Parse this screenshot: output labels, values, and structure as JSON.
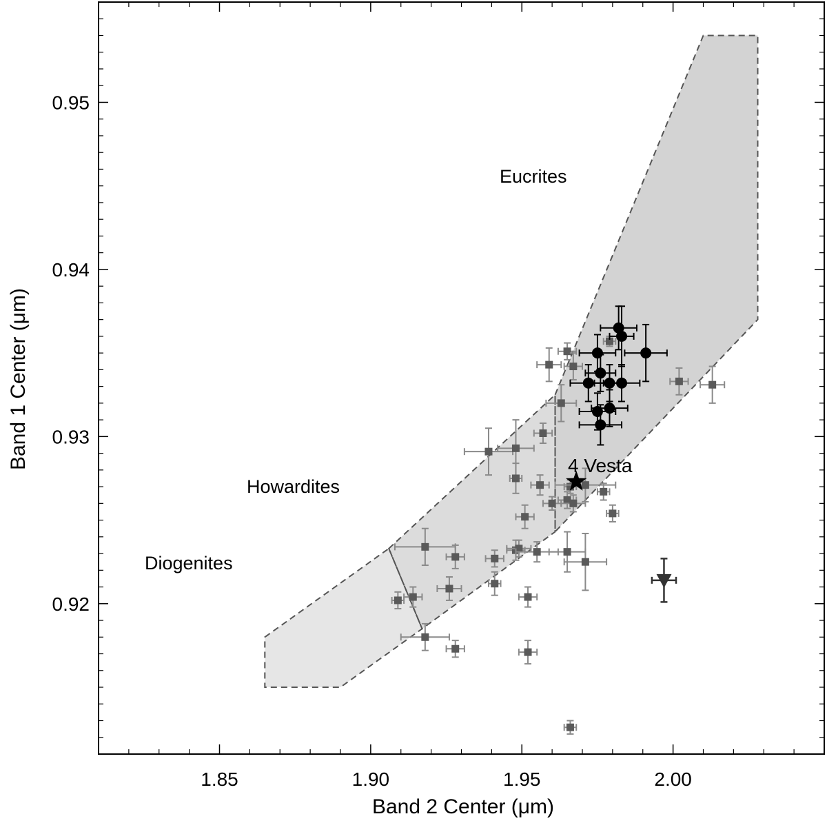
{
  "chart_data": {
    "type": "scatter",
    "xlabel": "Band 2 Center (μm)",
    "ylabel": "Band 1 Center (μm)",
    "xlim": [
      1.81,
      2.05
    ],
    "ylim": [
      0.911,
      0.956
    ],
    "xticks": [
      1.85,
      1.9,
      1.95,
      2.0
    ],
    "xtick_labels": [
      "1.85",
      "1.90",
      "1.95",
      "2.00"
    ],
    "yticks": [
      0.92,
      0.93,
      0.94,
      0.95
    ],
    "ytick_labels": [
      "0.92",
      "0.93",
      "0.94",
      "0.95"
    ],
    "grid": false,
    "colors": {
      "eucrite_region": "#d3d3d3",
      "howardite_region": "#dcdcdc",
      "diogenite_region": "#e6e6e6",
      "region_border": "#555555",
      "gray_points": "#5a5a5a",
      "gray_errorbars": "#8a8a8a",
      "black_points": "#000000",
      "triangle_point": "#333333"
    },
    "regions": [
      {
        "name": "Eucrites",
        "polygon": [
          [
            1.961,
            0.9325
          ],
          [
            2.01,
            0.954
          ],
          [
            2.028,
            0.954
          ],
          [
            2.028,
            0.937
          ],
          [
            1.961,
            0.9243
          ]
        ]
      },
      {
        "name": "Howardites",
        "polygon": [
          [
            1.906,
            0.9233
          ],
          [
            1.961,
            0.9325
          ],
          [
            1.961,
            0.9243
          ],
          [
            1.917,
            0.9185
          ]
        ]
      },
      {
        "name": "Diogenites",
        "polygon": [
          [
            1.865,
            0.918
          ],
          [
            1.906,
            0.9233
          ],
          [
            1.917,
            0.9185
          ],
          [
            1.89,
            0.915
          ],
          [
            1.865,
            0.915
          ]
        ]
      }
    ],
    "region_labels": [
      "Eucrites",
      "Howardites",
      "Diogenites"
    ],
    "series": [
      {
        "marker": "square",
        "points": [
          {
            "x": 1.909,
            "y": 0.9202,
            "xerr": 0.002,
            "yerr": 0.0005
          },
          {
            "x": 1.914,
            "y": 0.9204,
            "xerr": 0.003,
            "yerr": 0.0006
          },
          {
            "x": 1.918,
            "y": 0.9234,
            "xerr": 0.01,
            "yerr": 0.0011
          },
          {
            "x": 1.918,
            "y": 0.918,
            "xerr": 0.008,
            "yerr": 0.0008
          },
          {
            "x": 1.926,
            "y": 0.9209,
            "xerr": 0.004,
            "yerr": 0.0007
          },
          {
            "x": 1.928,
            "y": 0.9228,
            "xerr": 0.003,
            "yerr": 0.0007
          },
          {
            "x": 1.928,
            "y": 0.9173,
            "xerr": 0.003,
            "yerr": 0.0005
          },
          {
            "x": 1.939,
            "y": 0.9291,
            "xerr": 0.008,
            "yerr": 0.0014
          },
          {
            "x": 1.941,
            "y": 0.9227,
            "xerr": 0.003,
            "yerr": 0.0005
          },
          {
            "x": 1.941,
            "y": 0.9212,
            "xerr": 0.002,
            "yerr": 0.0007
          },
          {
            "x": 1.948,
            "y": 0.9293,
            "xerr": 0.006,
            "yerr": 0.0017
          },
          {
            "x": 1.948,
            "y": 0.9275,
            "xerr": 0.002,
            "yerr": 0.0009
          },
          {
            "x": 1.948,
            "y": 0.9232,
            "xerr": 0.003,
            "yerr": 0.0006
          },
          {
            "x": 1.949,
            "y": 0.9233,
            "xerr": 0.004,
            "yerr": 0.0005
          },
          {
            "x": 1.951,
            "y": 0.9252,
            "xerr": 0.003,
            "yerr": 0.0007
          },
          {
            "x": 1.952,
            "y": 0.9204,
            "xerr": 0.003,
            "yerr": 0.0006
          },
          {
            "x": 1.952,
            "y": 0.9171,
            "xerr": 0.003,
            "yerr": 0.0007
          },
          {
            "x": 1.955,
            "y": 0.9231,
            "xerr": 0.007,
            "yerr": 0.0006
          },
          {
            "x": 1.956,
            "y": 0.9271,
            "xerr": 0.003,
            "yerr": 0.0006
          },
          {
            "x": 1.957,
            "y": 0.9302,
            "xerr": 0.003,
            "yerr": 0.0006
          },
          {
            "x": 1.959,
            "y": 0.9343,
            "xerr": 0.004,
            "yerr": 0.001
          },
          {
            "x": 1.96,
            "y": 0.926,
            "xerr": 0.003,
            "yerr": 0.0004
          },
          {
            "x": 1.963,
            "y": 0.932,
            "xerr": 0.005,
            "yerr": 0.0011
          },
          {
            "x": 1.965,
            "y": 0.9351,
            "xerr": 0.003,
            "yerr": 0.0005
          },
          {
            "x": 1.965,
            "y": 0.9231,
            "xerr": 0.006,
            "yerr": 0.0012
          },
          {
            "x": 1.965,
            "y": 0.9262,
            "xerr": 0.003,
            "yerr": 0.0005
          },
          {
            "x": 1.966,
            "y": 0.927,
            "xerr": 0.002,
            "yerr": 0.0004
          },
          {
            "x": 1.966,
            "y": 0.9126,
            "xerr": 0.002,
            "yerr": 0.0004
          },
          {
            "x": 1.967,
            "y": 0.926,
            "xerr": 0.004,
            "yerr": 0.0005
          },
          {
            "x": 1.967,
            "y": 0.9342,
            "xerr": 0.003,
            "yerr": 0.0008
          },
          {
            "x": 1.971,
            "y": 0.9271,
            "xerr": 0.01,
            "yerr": 0.001
          },
          {
            "x": 1.971,
            "y": 0.9225,
            "xerr": 0.007,
            "yerr": 0.0017
          },
          {
            "x": 1.977,
            "y": 0.9267,
            "xerr": 0.002,
            "yerr": 0.0005
          },
          {
            "x": 1.979,
            "y": 0.9357,
            "xerr": 0.002,
            "yerr": 0.0003
          },
          {
            "x": 1.98,
            "y": 0.9254,
            "xerr": 0.002,
            "yerr": 0.0005
          },
          {
            "x": 2.002,
            "y": 0.9333,
            "xerr": 0.003,
            "yerr": 0.0008
          },
          {
            "x": 2.013,
            "y": 0.9331,
            "xerr": 0.004,
            "yerr": 0.0011
          }
        ]
      },
      {
        "marker": "circle",
        "points": [
          {
            "x": 1.975,
            "y": 0.935,
            "xerr": 0.006,
            "yerr": 0.0011
          },
          {
            "x": 1.976,
            "y": 0.9338,
            "xerr": 0.005,
            "yerr": 0.0011
          },
          {
            "x": 1.972,
            "y": 0.9332,
            "xerr": 0.006,
            "yerr": 0.0011
          },
          {
            "x": 1.979,
            "y": 0.9332,
            "xerr": 0.005,
            "yerr": 0.0011
          },
          {
            "x": 1.983,
            "y": 0.9332,
            "xerr": 0.006,
            "yerr": 0.0011
          },
          {
            "x": 1.975,
            "y": 0.9315,
            "xerr": 0.006,
            "yerr": 0.0011
          },
          {
            "x": 1.979,
            "y": 0.9317,
            "xerr": 0.006,
            "yerr": 0.0011
          },
          {
            "x": 1.976,
            "y": 0.9307,
            "xerr": 0.007,
            "yerr": 0.0012
          },
          {
            "x": 1.982,
            "y": 0.9365,
            "xerr": 0.006,
            "yerr": 0.0013
          },
          {
            "x": 1.983,
            "y": 0.936,
            "xerr": 0.004,
            "yerr": 0.0018
          },
          {
            "x": 1.991,
            "y": 0.935,
            "xerr": 0.007,
            "yerr": 0.0017
          }
        ]
      },
      {
        "marker": "star",
        "label": "4 Vesta",
        "points": [
          {
            "x": 1.968,
            "y": 0.9273
          }
        ]
      },
      {
        "marker": "triangle-down",
        "points": [
          {
            "x": 1.997,
            "y": 0.9214,
            "xerr": 0.004,
            "yerr": 0.0013
          }
        ]
      }
    ]
  }
}
